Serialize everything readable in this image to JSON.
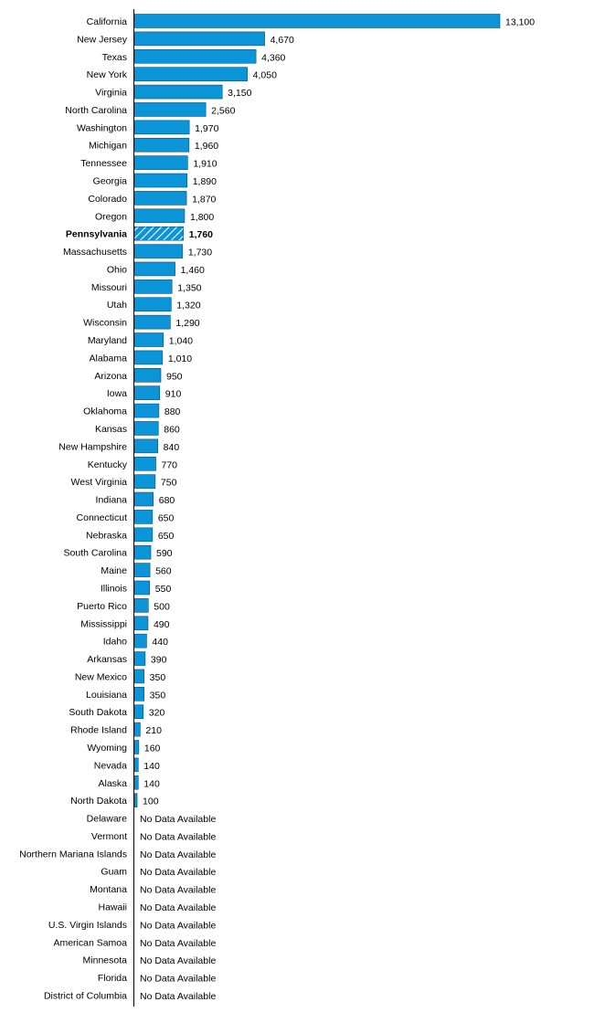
{
  "chart_data": {
    "type": "bar",
    "orientation": "horizontal",
    "bar_color": "#0b94d8",
    "bar_border_color": "#0a4f7a",
    "axis_color": "#000000",
    "highlight_category": "Pennsylvania",
    "highlight_pattern": "diagonal-hatch",
    "no_data_text": "No Data Available",
    "xlim": [
      0,
      13100
    ],
    "grid": false,
    "legend": "none",
    "categories": [
      "California",
      "New Jersey",
      "Texas",
      "New York",
      "Virginia",
      "North Carolina",
      "Washington",
      "Michigan",
      "Tennessee",
      "Georgia",
      "Colorado",
      "Oregon",
      "Pennsylvania",
      "Massachusetts",
      "Ohio",
      "Missouri",
      "Utah",
      "Wisconsin",
      "Maryland",
      "Alabama",
      "Arizona",
      "Iowa",
      "Oklahoma",
      "Kansas",
      "New Hampshire",
      "Kentucky",
      "West Virginia",
      "Indiana",
      "Connecticut",
      "Nebraska",
      "South Carolina",
      "Maine",
      "Illinois",
      "Puerto Rico",
      "Mississippi",
      "Idaho",
      "Arkansas",
      "New Mexico",
      "Louisiana",
      "South Dakota",
      "Rhode Island",
      "Wyoming",
      "Nevada",
      "Alaska",
      "North Dakota",
      "Delaware",
      "Vermont",
      "Northern Mariana Islands",
      "Guam",
      "Montana",
      "Hawaii",
      "U.S. Virgin Islands",
      "American Samoa",
      "Minnesota",
      "Florida",
      "District of Columbia"
    ],
    "values": [
      13100,
      4670,
      4360,
      4050,
      3150,
      2560,
      1970,
      1960,
      1910,
      1890,
      1870,
      1800,
      1760,
      1730,
      1460,
      1350,
      1320,
      1290,
      1040,
      1010,
      950,
      910,
      880,
      860,
      840,
      770,
      750,
      680,
      650,
      650,
      590,
      560,
      550,
      500,
      490,
      440,
      390,
      350,
      350,
      320,
      210,
      160,
      140,
      140,
      100,
      null,
      null,
      null,
      null,
      null,
      null,
      null,
      null,
      null,
      null,
      null
    ],
    "value_labels": [
      "13,100",
      "4,670",
      "4,360",
      "4,050",
      "3,150",
      "2,560",
      "1,970",
      "1,960",
      "1,910",
      "1,890",
      "1,870",
      "1,800",
      "1,760",
      "1,730",
      "1,460",
      "1,350",
      "1,320",
      "1,290",
      "1,040",
      "1,010",
      "950",
      "910",
      "880",
      "860",
      "840",
      "770",
      "750",
      "680",
      "650",
      "650",
      "590",
      "560",
      "550",
      "500",
      "490",
      "440",
      "390",
      "350",
      "350",
      "320",
      "210",
      "160",
      "140",
      "140",
      "100",
      "No Data Available",
      "No Data Available",
      "No Data Available",
      "No Data Available",
      "No Data Available",
      "No Data Available",
      "No Data Available",
      "No Data Available",
      "No Data Available",
      "No Data Available",
      "No Data Available"
    ]
  }
}
